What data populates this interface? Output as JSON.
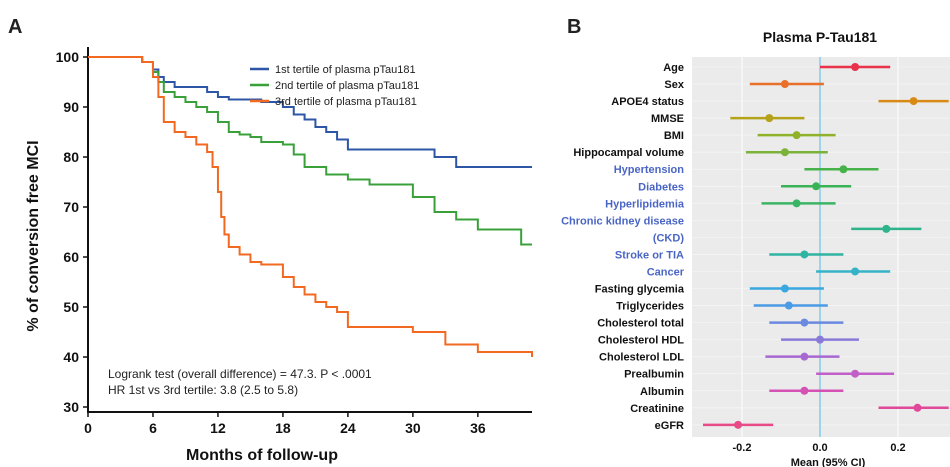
{
  "panel_a_letter": "A",
  "panel_b_letter": "B",
  "chart_data": [
    {
      "type": "line",
      "step": true,
      "title": "",
      "xlabel": "Months of follow-up",
      "ylabel": "% of conversion free MCI",
      "xlim": [
        0,
        41
      ],
      "ylim": [
        29,
        102
      ],
      "xticks": [
        "0",
        "6",
        "12",
        "18",
        "24",
        "30",
        "36"
      ],
      "yticks": [
        "30",
        "40",
        "50",
        "60",
        "70",
        "80",
        "90",
        "100"
      ],
      "legend_position": "top-right",
      "grid": false,
      "annotations": [
        "Logrank test (overall difference) = 47.3. P < .0001",
        "HR 1st vs 3rd tertile: 3.8 (2.5 to 5.8)"
      ],
      "series": [
        {
          "name": "1st tertile of plasma pTau181",
          "color": "#2e56a6",
          "x": [
            0,
            5,
            6,
            6.5,
            7,
            8,
            11,
            12,
            13,
            16,
            18,
            19,
            20,
            21,
            22,
            23,
            24,
            30,
            32,
            34,
            41
          ],
          "y": [
            100,
            99,
            97.5,
            96,
            95,
            94,
            93,
            92,
            91.5,
            91,
            90,
            88.5,
            87.5,
            86,
            85,
            83.5,
            81.5,
            81.5,
            80,
            78,
            78
          ]
        },
        {
          "name": "2nd tertile of plasma pTau181",
          "color": "#3aa13a",
          "x": [
            0,
            5,
            6,
            6.5,
            7,
            8,
            9,
            10,
            11,
            12,
            13,
            14,
            15,
            16,
            18,
            19,
            20,
            22,
            24,
            26,
            30,
            32,
            34,
            36,
            40,
            41
          ],
          "y": [
            100,
            99,
            97,
            95,
            93,
            92,
            91,
            90,
            89,
            87,
            85,
            84.5,
            84,
            83,
            82.5,
            80.5,
            78,
            76.5,
            75.5,
            74.5,
            72,
            69,
            67.5,
            65.5,
            62.5,
            62.5
          ]
        },
        {
          "name": "3rd tertile of plasma pTau181",
          "color": "#f26a21",
          "x": [
            0,
            5,
            6,
            6.5,
            7,
            8,
            9,
            10,
            11,
            11.5,
            12,
            12.3,
            12.6,
            13,
            14,
            15,
            16,
            18,
            19,
            20,
            21,
            22,
            23,
            24,
            30,
            33,
            36,
            41
          ],
          "y": [
            100,
            99,
            96,
            92,
            87,
            85,
            84,
            82.5,
            81,
            78,
            73,
            68,
            64.5,
            62,
            60.5,
            59,
            58.5,
            56,
            54,
            52.5,
            51,
            50,
            49,
            46,
            45,
            42.5,
            41,
            40
          ]
        }
      ]
    },
    {
      "type": "forest",
      "title": "Plasma P-Tau181",
      "xlabel": "Mean (95% CI)",
      "xlim": [
        -0.33,
        0.33
      ],
      "xticks": [
        "-0.2",
        "0.0",
        "0.2"
      ],
      "reference_line": 0,
      "categories": [
        "Age",
        "Sex",
        "APOE4 status",
        "MMSE",
        "BMI",
        "Hippocampal volume",
        "Hypertension",
        "Diabetes",
        "Hyperlipidemia",
        "Chronic kidney disease",
        "(CKD)",
        "Stroke or TIA",
        "Cancer",
        "Fasting glycemia",
        "Triglycerides",
        "Cholesterol total",
        "Cholesterol HDL",
        "Cholesterol LDL",
        "Prealbumin",
        "Albumin",
        "Creatinine",
        "eGFR"
      ],
      "label_color_black": "#111111",
      "label_color_blue": "#4a66c4",
      "blue_labels": [
        "Hypertension",
        "Diabetes",
        "Hyperlipidemia",
        "Chronic kidney disease",
        "(CKD)",
        "Stroke or TIA",
        "Cancer"
      ],
      "points": [
        {
          "label": "Age",
          "mean": 0.09,
          "lo": 0.0,
          "hi": 0.18,
          "color": "#e8334a"
        },
        {
          "label": "Sex",
          "mean": -0.09,
          "lo": -0.18,
          "hi": 0.01,
          "color": "#e8702a"
        },
        {
          "label": "APOE4 status",
          "mean": 0.24,
          "lo": 0.15,
          "hi": 0.33,
          "color": "#d98a16"
        },
        {
          "label": "MMSE",
          "mean": -0.13,
          "lo": -0.23,
          "hi": -0.04,
          "color": "#b4a21a"
        },
        {
          "label": "BMI",
          "mean": -0.06,
          "lo": -0.16,
          "hi": 0.04,
          "color": "#8fb22a"
        },
        {
          "label": "Hippocampal volume",
          "mean": -0.09,
          "lo": -0.19,
          "hi": 0.02,
          "color": "#7ab23a"
        },
        {
          "label": "Hypertension",
          "mean": 0.06,
          "lo": -0.04,
          "hi": 0.15,
          "color": "#45b24a"
        },
        {
          "label": "Diabetes",
          "mean": -0.01,
          "lo": -0.1,
          "hi": 0.08,
          "color": "#3ab355"
        },
        {
          "label": "Hyperlipidemia",
          "mean": -0.06,
          "lo": -0.15,
          "hi": 0.04,
          "color": "#3ab565"
        },
        {
          "label": "Chronic kidney disease (CKD)",
          "mean": 0.17,
          "lo": 0.08,
          "hi": 0.26,
          "color": "#2fb38a"
        },
        {
          "label": "Stroke or TIA",
          "mean": -0.04,
          "lo": -0.13,
          "hi": 0.06,
          "color": "#2fb3a2"
        },
        {
          "label": "Cancer",
          "mean": 0.09,
          "lo": -0.01,
          "hi": 0.18,
          "color": "#36b3c8"
        },
        {
          "label": "Fasting glycemia",
          "mean": -0.09,
          "lo": -0.18,
          "hi": 0.01,
          "color": "#3aa8e0"
        },
        {
          "label": "Triglycerides",
          "mean": -0.08,
          "lo": -0.17,
          "hi": 0.02,
          "color": "#4a9be6"
        },
        {
          "label": "Cholesterol total",
          "mean": -0.04,
          "lo": -0.13,
          "hi": 0.06,
          "color": "#6a8ae0"
        },
        {
          "label": "Cholesterol HDL",
          "mean": 0.0,
          "lo": -0.1,
          "hi": 0.1,
          "color": "#8a7ad8"
        },
        {
          "label": "Cholesterol LDL",
          "mean": -0.04,
          "lo": -0.14,
          "hi": 0.05,
          "color": "#a868d2"
        },
        {
          "label": "Prealbumin",
          "mean": 0.09,
          "lo": -0.01,
          "hi": 0.19,
          "color": "#c25ec8"
        },
        {
          "label": "Albumin",
          "mean": -0.04,
          "lo": -0.13,
          "hi": 0.06,
          "color": "#d452b4"
        },
        {
          "label": "Creatinine",
          "mean": 0.25,
          "lo": 0.15,
          "hi": 0.33,
          "color": "#e0489a"
        },
        {
          "label": "eGFR",
          "mean": -0.21,
          "lo": -0.3,
          "hi": -0.12,
          "color": "#e84a88"
        }
      ]
    }
  ]
}
